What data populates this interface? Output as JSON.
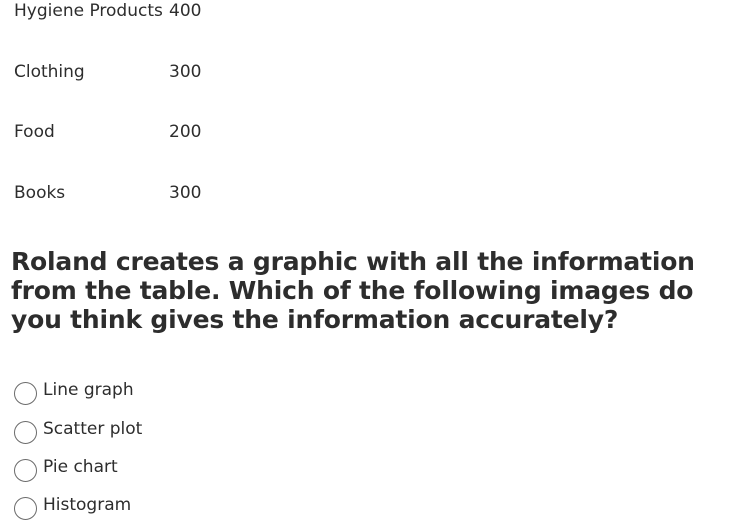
{
  "table": {
    "rows": [
      {
        "category": "Hygiene Products",
        "value": "400"
      },
      {
        "category": "Clothing",
        "value": "300"
      },
      {
        "category": "Food",
        "value": "200"
      },
      {
        "category": "Books",
        "value": "300"
      }
    ]
  },
  "question": "Roland creates a graphic with all the information from the table. Which of the following images do you think gives the information accurately?",
  "options": [
    {
      "label": "Line graph",
      "selected": false
    },
    {
      "label": "Scatter plot",
      "selected": false
    },
    {
      "label": "Pie chart",
      "selected": false
    },
    {
      "label": "Histogram",
      "selected": false
    }
  ]
}
